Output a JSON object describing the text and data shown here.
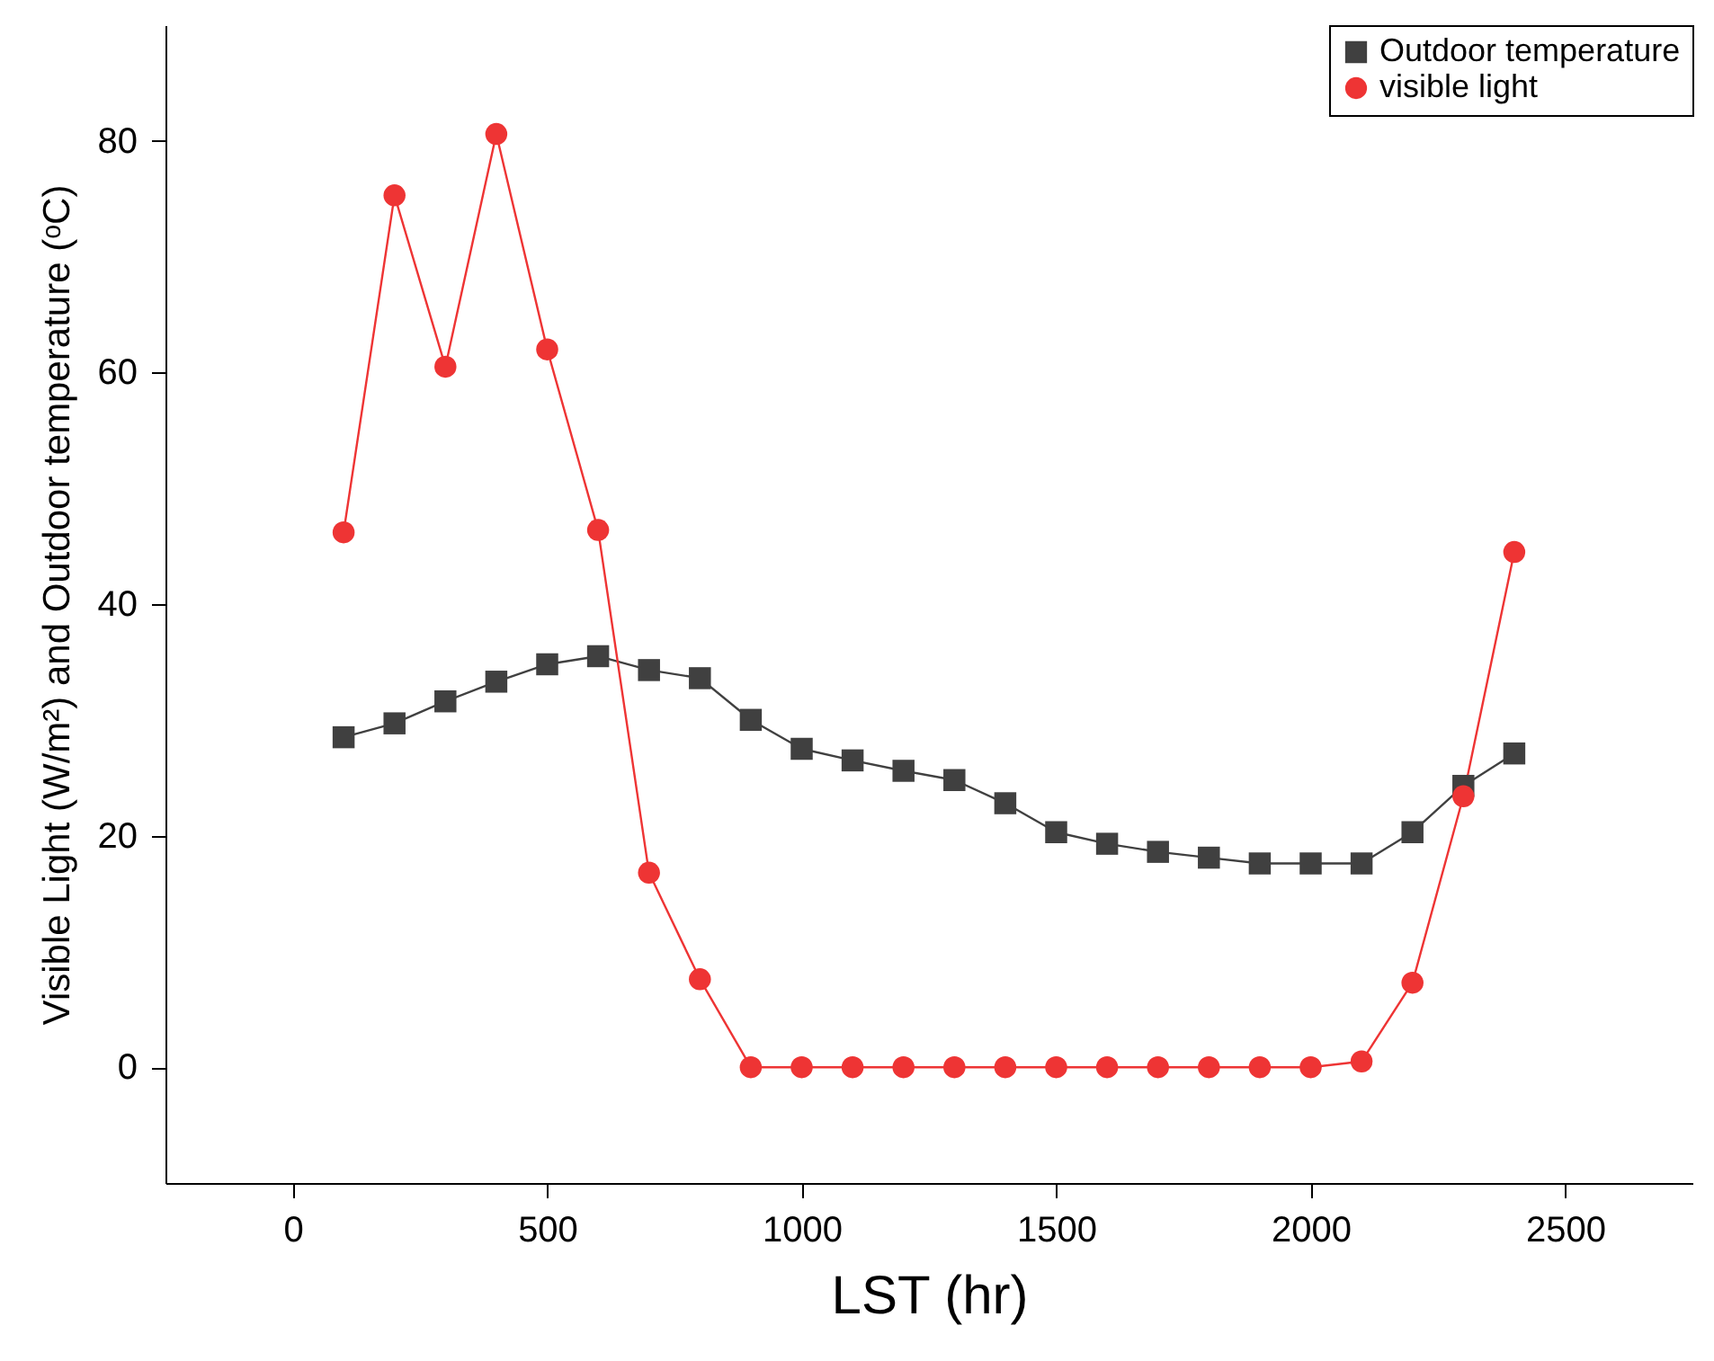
{
  "chart_data": {
    "type": "line",
    "xlabel": "LST (hr)",
    "ylabel": "Visible Light (W/m²) and Outdoor temperature (ᵒC)",
    "x": [
      100,
      200,
      300,
      400,
      500,
      600,
      700,
      800,
      900,
      1000,
      1100,
      1200,
      1300,
      1400,
      1500,
      1600,
      1700,
      1800,
      1900,
      2000,
      2100,
      2200,
      2300,
      2400
    ],
    "series": [
      {
        "name": "Outdoor temperature",
        "color": "#404040",
        "marker": "square",
        "values": [
          28.5,
          29.7,
          31.6,
          33.3,
          34.8,
          35.5,
          34.3,
          33.6,
          30,
          27.5,
          26.5,
          25.6,
          24.8,
          22.8,
          20.3,
          19.3,
          18.6,
          18.1,
          17.6,
          17.6,
          17.6,
          20.3,
          24.3,
          27.1
        ]
      },
      {
        "name": "visible light",
        "color": "#ee3434",
        "marker": "circle",
        "values": [
          46.2,
          75.3,
          60.5,
          80.6,
          62,
          46.4,
          16.8,
          7.6,
          0,
          0,
          0,
          0,
          0,
          0,
          0,
          0,
          0,
          0,
          0,
          0,
          0.5,
          7.3,
          23.4,
          44.5
        ]
      }
    ],
    "xlim": [
      -250,
      2750
    ],
    "xticks": [
      0,
      500,
      1000,
      1500,
      2000,
      2500
    ],
    "ylim": [
      -10,
      90
    ],
    "yticks": [
      0,
      20,
      40,
      60,
      80
    ],
    "grid": false,
    "legend": "top right",
    "line_style": "solid"
  }
}
